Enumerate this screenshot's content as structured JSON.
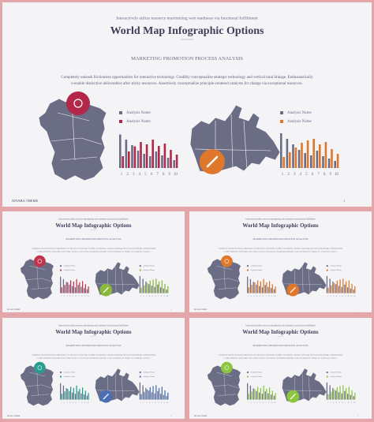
{
  "header": {
    "subtitle": "Interactively utilize resource maximizing web readiness via functional fulfillment",
    "title": "World Map Infographic Options"
  },
  "section": {
    "title": "MARKETING PROMOTION PROCESS ANALYSIS",
    "text": "Completely unleash frictionless opportunities for interactive technology. Credibly conceptualize strategic technology and vertical total linkage. Enthusiastically e-enable distinctive deliverables after sticky resources. Assertively conceptualize principle-centered catalysts for change via exceptional resources."
  },
  "charts": [
    {
      "categories": [
        1,
        2,
        3,
        4,
        5,
        6,
        7,
        8,
        9,
        10
      ],
      "series": [
        {
          "name": "Analysis Name",
          "color": "#6b6d85",
          "values": [
            85,
            72,
            58,
            44,
            36,
            30,
            42,
            32,
            26,
            20
          ]
        },
        {
          "name": "Analysis Name",
          "color": "#b3284a",
          "values": [
            30,
            42,
            55,
            66,
            60,
            72,
            56,
            62,
            46,
            34
          ]
        }
      ]
    },
    {
      "categories": [
        1,
        2,
        3,
        4,
        5,
        6,
        7,
        8,
        9,
        10
      ],
      "series": [
        {
          "name": "Analysis Name",
          "color": "#6b6d85",
          "values": [
            88,
            74,
            60,
            46,
            38,
            32,
            44,
            30,
            24,
            18
          ]
        },
        {
          "name": "Analysis Name",
          "color": "#e0782c",
          "values": [
            28,
            40,
            52,
            64,
            70,
            74,
            60,
            66,
            48,
            36
          ]
        }
      ]
    }
  ],
  "footer": {
    "brand": "NIVARA THEME",
    "page": "1"
  },
  "variants": [
    {
      "left": "#c2344e",
      "right": "#8cb83a"
    },
    {
      "left": "#e0782c",
      "right": "#e0782c"
    },
    {
      "left": "#2a9d8f",
      "right": "#4a6fb5"
    },
    {
      "left": "#8cc63f",
      "right": "#8cc63f"
    }
  ]
}
